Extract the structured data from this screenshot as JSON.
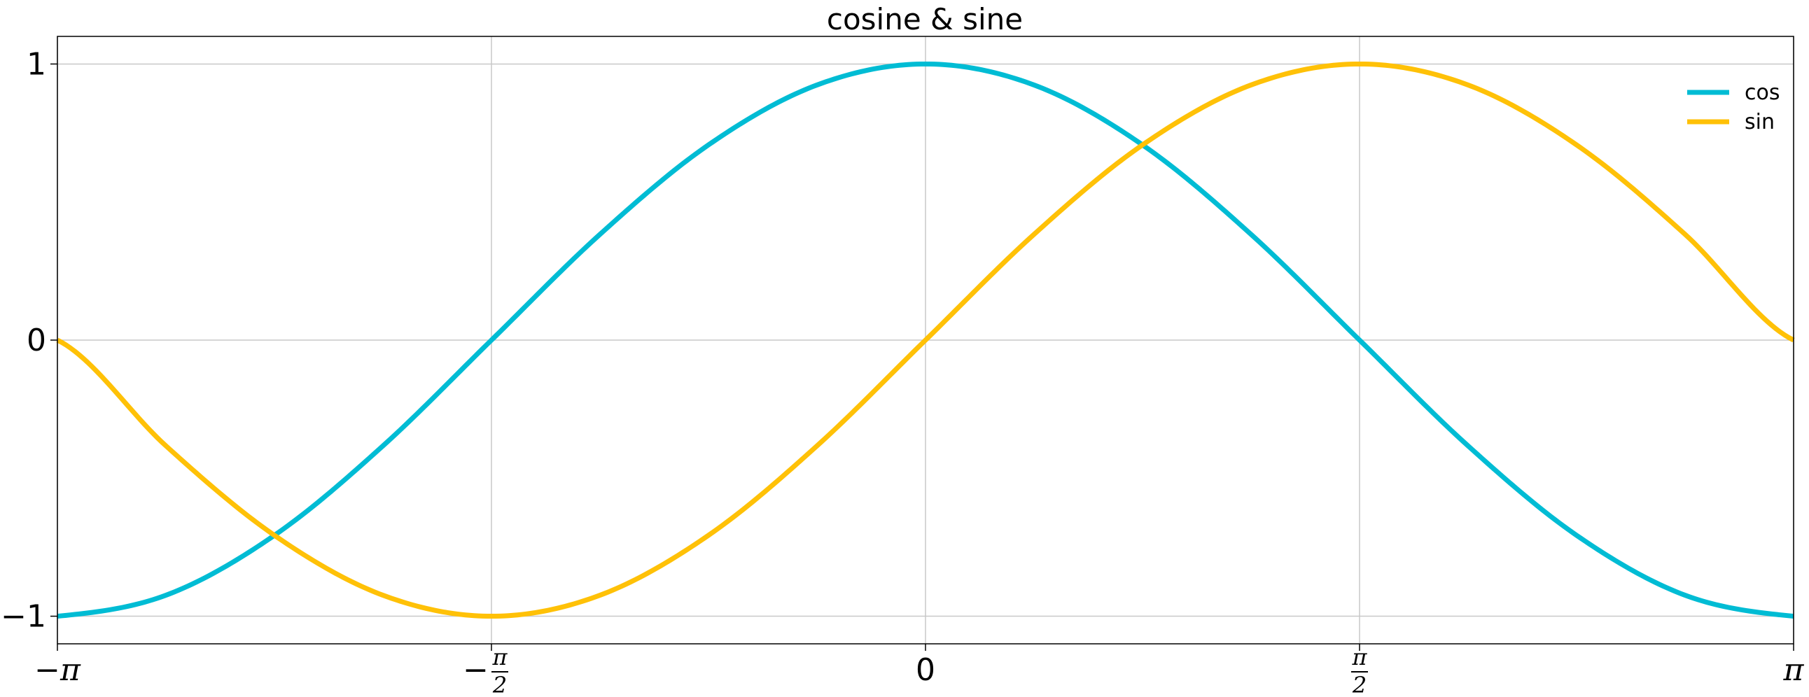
{
  "chart_data": {
    "type": "line",
    "title": "cosine & sine",
    "xlabel": "",
    "ylabel": "",
    "xlim": [
      -3.14159,
      3.14159
    ],
    "ylim": [
      -1.1,
      1.1
    ],
    "grid": true,
    "legend_position": "top-right",
    "x_ticks": [
      {
        "value": -3.14159,
        "label": "−π",
        "kind": "plain"
      },
      {
        "value": -1.5708,
        "label": "−π/2",
        "kind": "frac",
        "sign": "−",
        "num": "π",
        "den": "2"
      },
      {
        "value": 0,
        "label": "0",
        "kind": "plain"
      },
      {
        "value": 1.5708,
        "label": "π/2",
        "kind": "frac",
        "sign": "",
        "num": "π",
        "den": "2"
      },
      {
        "value": 3.14159,
        "label": "π",
        "kind": "plain"
      }
    ],
    "y_ticks": [
      {
        "value": -1,
        "label": "−1"
      },
      {
        "value": 0,
        "label": "0"
      },
      {
        "value": 1,
        "label": "1"
      }
    ],
    "series": [
      {
        "name": "cos",
        "color": "#00bcd4",
        "x": [
          -3.1416,
          -2.7489,
          -2.3562,
          -1.9635,
          -1.5708,
          -1.1781,
          -0.7854,
          -0.3927,
          0,
          0.3927,
          0.7854,
          1.1781,
          1.5708,
          1.9635,
          2.3562,
          2.7489,
          3.1416
        ],
        "y": [
          -1,
          -0.924,
          -0.707,
          -0.383,
          0,
          0.383,
          0.707,
          0.924,
          1,
          0.924,
          0.707,
          0.383,
          0,
          -0.383,
          -0.707,
          -0.924,
          -1
        ]
      },
      {
        "name": "sin",
        "color": "#ffc107",
        "x": [
          -3.1416,
          -2.7489,
          -2.3562,
          -1.9635,
          -1.5708,
          -1.1781,
          -0.7854,
          -0.3927,
          0,
          0.3927,
          0.7854,
          1.1781,
          1.5708,
          1.9635,
          2.3562,
          2.7489,
          3.1416
        ],
        "y": [
          0,
          -0.383,
          -0.707,
          -0.924,
          -1,
          -0.924,
          -0.707,
          -0.383,
          0,
          0.383,
          0.707,
          0.924,
          1,
          0.924,
          0.707,
          0.383,
          0
        ]
      }
    ]
  }
}
